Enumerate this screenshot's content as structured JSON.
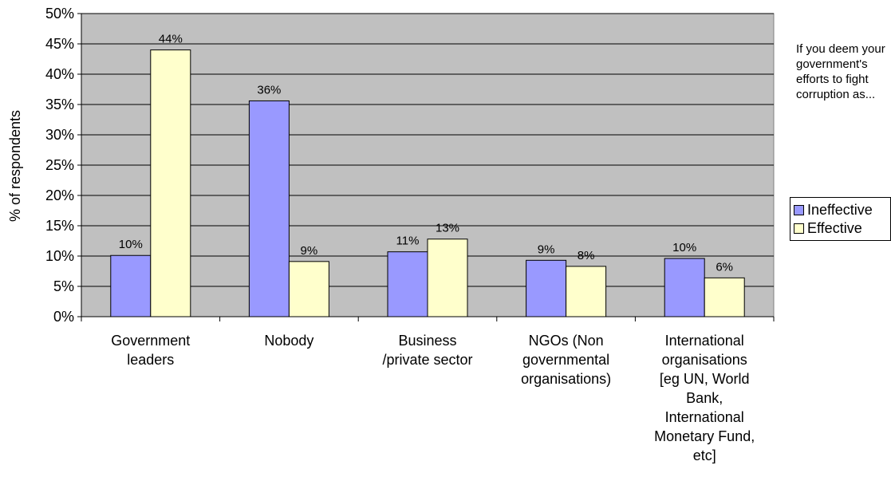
{
  "chart_data": {
    "type": "bar",
    "categories": [
      [
        "Government",
        "leaders"
      ],
      [
        "Nobody"
      ],
      [
        "Business",
        "/private sector"
      ],
      [
        "NGOs (Non",
        "governmental",
        "organisations)"
      ],
      [
        "International",
        "organisations",
        "[eg UN, World",
        "Bank,",
        "International",
        "Monetary Fund,",
        "etc]"
      ]
    ],
    "series": [
      {
        "name": "Ineffective",
        "color": "#9999ff",
        "values": [
          10.1,
          35.6,
          10.7,
          9.3,
          9.6
        ],
        "labels": [
          "10%",
          "36%",
          "11%",
          "9%",
          "10%"
        ]
      },
      {
        "name": "Effective",
        "color": "#ffffcc",
        "values": [
          44.0,
          9.1,
          12.8,
          8.3,
          6.4
        ],
        "labels": [
          "44%",
          "9%",
          "13%",
          "8%",
          "6%"
        ]
      }
    ],
    "ylabel": "% of respondents",
    "yticks": [
      "0%",
      "5%",
      "10%",
      "15%",
      "20%",
      "25%",
      "30%",
      "35%",
      "40%",
      "45%",
      "50%"
    ],
    "ylim": [
      0,
      50
    ],
    "ystep": 5,
    "grid": true,
    "plot_background": "#c0c0c0",
    "legend_position": "right",
    "legend_title": "If you deem your government's efforts to fight corruption as..."
  }
}
